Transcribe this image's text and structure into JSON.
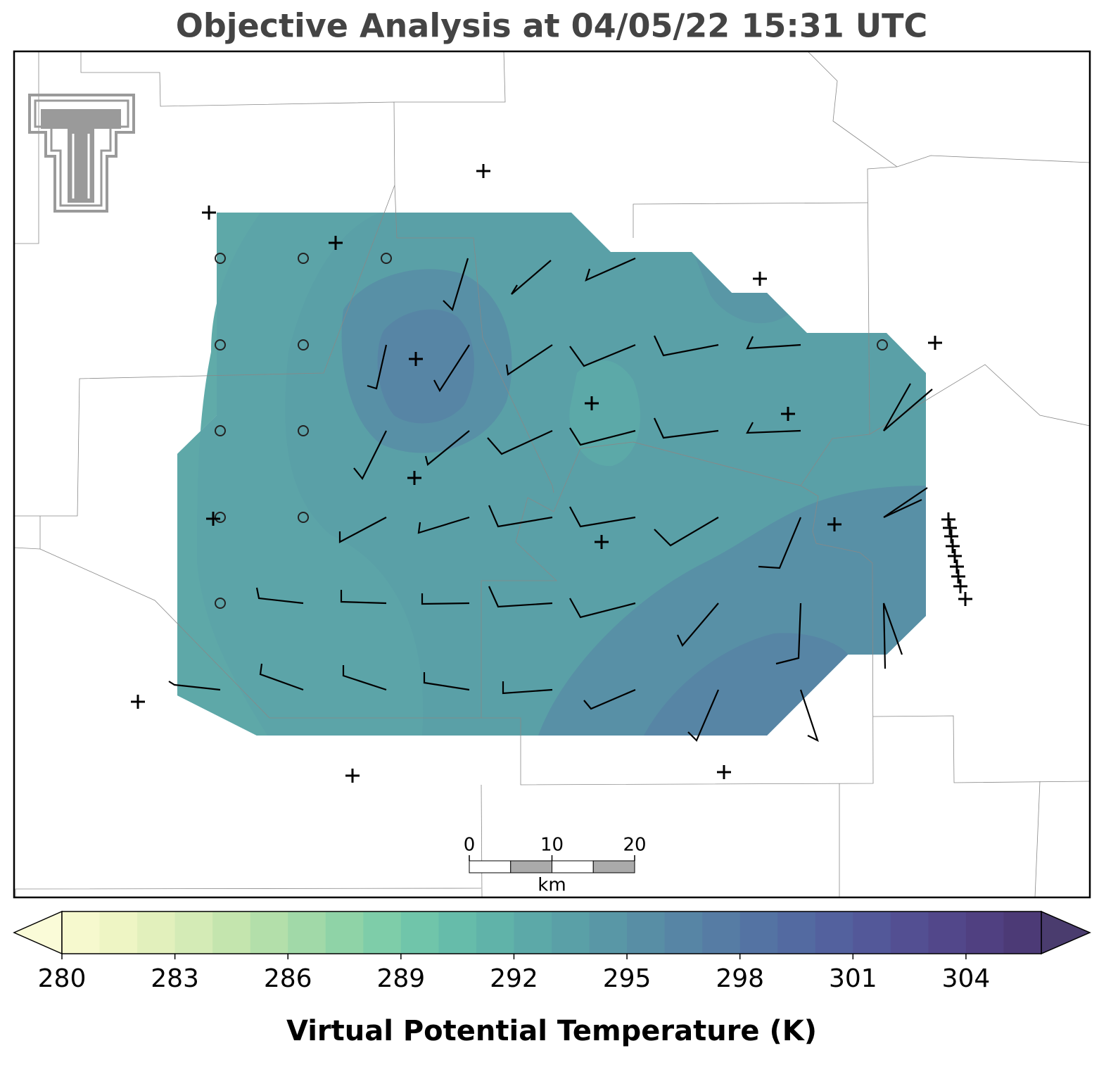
{
  "title": "Objective Analysis at 04/05/22 15:31 UTC",
  "colorbar": {
    "label": "Virtual Potential Temperature (K)",
    "lim": [
      280,
      306
    ],
    "ticks": [
      280,
      283,
      286,
      289,
      292,
      295,
      298,
      301,
      304
    ],
    "colors": [
      "#f6f9ce",
      "#eef5c4",
      "#e2f0bc",
      "#d4ebb6",
      "#c4e5ae",
      "#b3dfaa",
      "#a1d9a8",
      "#8fd3a7",
      "#7ecda9",
      "#70c5aa",
      "#66bcaa",
      "#60b3a9",
      "#5ca9a8",
      "#5aa0a7",
      "#5997a6",
      "#588ea5",
      "#5785a5",
      "#567ca4",
      "#5473a3",
      "#536aa1",
      "#53619e",
      "#535899",
      "#534f92",
      "#52478a",
      "#504081",
      "#4c3a76"
    ],
    "under_color": "#fafbd8",
    "over_color": "#4a3c6e"
  },
  "scale_bar": {
    "lim": [
      0,
      20
    ],
    "ticks": [
      0,
      10,
      20
    ],
    "unit": "km"
  }
}
